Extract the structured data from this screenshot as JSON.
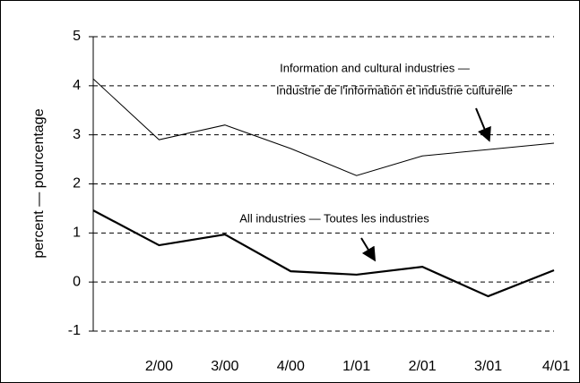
{
  "chart_data": {
    "type": "line",
    "ylabel": "percent — pourcentage",
    "categories": [
      null,
      "2/00",
      "3/00",
      "4/00",
      "1/01",
      "2/01",
      "3/01",
      "4/01"
    ],
    "series": [
      {
        "color": "#000000",
        "values": [
          4.14,
          2.9,
          3.2,
          2.72,
          2.17,
          2.57,
          2.7,
          2.83
        ]
      },
      {
        "color": "#000000",
        "values": [
          1.46,
          0.75,
          0.97,
          0.22,
          0.15,
          0.31,
          -0.29,
          0.24
        ]
      }
    ],
    "annotations": [
      {
        "lines": [
          "Information and cultural industries —",
          "Industrie de l'information et industrie culturelle"
        ]
      },
      {
        "lines": [
          "All industries — Toutes les industries"
        ]
      }
    ],
    "ylim": [
      -1,
      5
    ],
    "yticks": [
      -1,
      0,
      1,
      2,
      3,
      4,
      5
    ],
    "grid": true
  }
}
